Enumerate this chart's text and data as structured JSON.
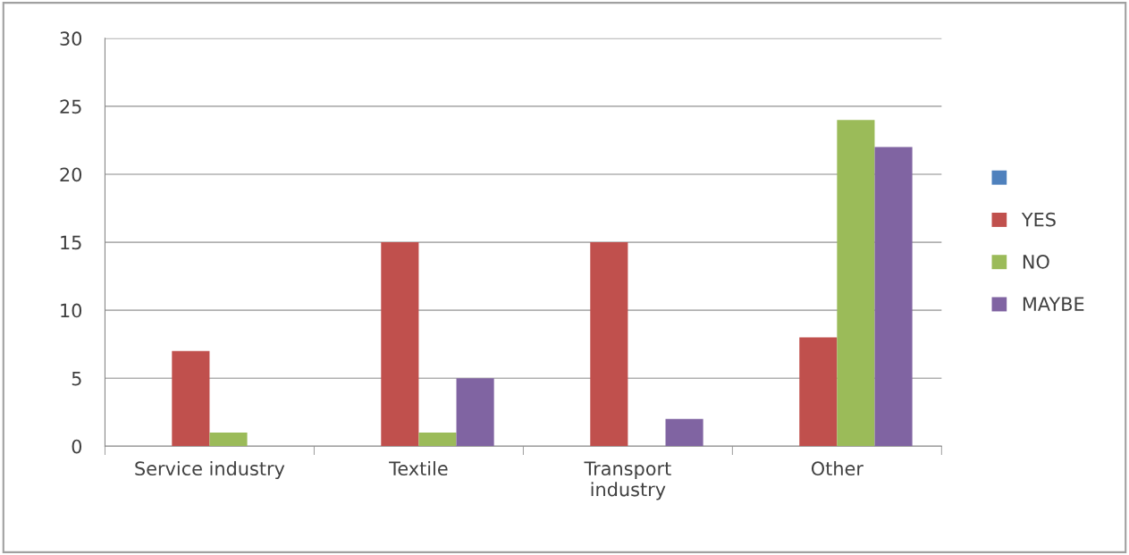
{
  "chart_data": {
    "type": "bar",
    "categories": [
      "Service industry",
      "Textile",
      "Transport\nindustry",
      "Other"
    ],
    "series": [
      {
        "color": "#4f81bd",
        "values": [
          null,
          null,
          null,
          null
        ]
      },
      {
        "name": "YES",
        "color": "#c0504d",
        "values": [
          7,
          15,
          15,
          8
        ]
      },
      {
        "name": "NO",
        "color": "#9bbb59",
        "values": [
          1,
          1,
          0,
          24
        ]
      },
      {
        "name": "MAYBE",
        "color": "#8064a2",
        "values": [
          0,
          5,
          2,
          22
        ]
      }
    ],
    "ylim": [
      0,
      30
    ],
    "yticks": [
      0,
      5,
      10,
      15,
      20,
      25,
      30
    ],
    "grid": "y",
    "legend": "right"
  }
}
